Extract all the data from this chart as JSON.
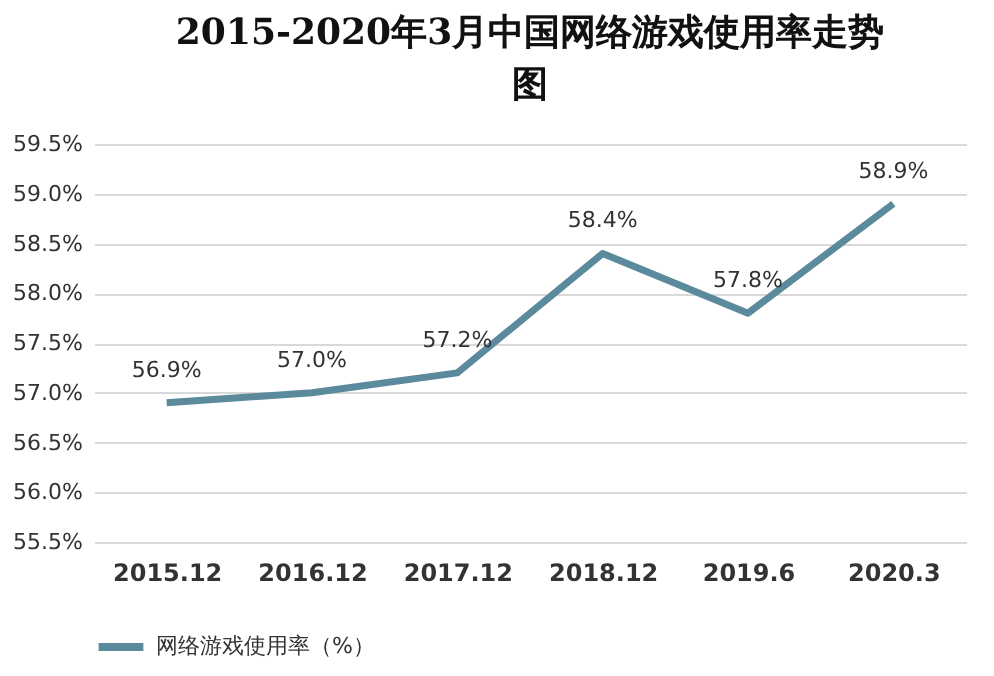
{
  "chart_data": {
    "type": "line",
    "title": "2015-2020年3月中国网络游戏使用率走势图",
    "categories": [
      "2015.12",
      "2016.12",
      "2017.12",
      "2018.12",
      "2019.6",
      "2020.3"
    ],
    "series": [
      {
        "name": "网络游戏使用率（%）",
        "color": "#5b8a9c",
        "values": [
          56.9,
          57.0,
          57.2,
          58.4,
          57.8,
          58.9
        ],
        "value_labels": [
          "56.9%",
          "57.0%",
          "57.2%",
          "58.4%",
          "57.8%",
          "58.9%"
        ]
      }
    ],
    "ylim": [
      55.5,
      59.5
    ],
    "yticks": [
      {
        "value": 55.5,
        "label": "55.5%"
      },
      {
        "value": 56.0,
        "label": "56.0%"
      },
      {
        "value": 56.5,
        "label": "56.5%"
      },
      {
        "value": 57.0,
        "label": "57.0%"
      },
      {
        "value": 57.5,
        "label": "57.5%"
      },
      {
        "value": 58.0,
        "label": "58.0%"
      },
      {
        "value": 58.5,
        "label": "58.5%"
      },
      {
        "value": 59.0,
        "label": "59.0%"
      },
      {
        "value": 59.5,
        "label": "59.5%"
      }
    ],
    "grid": "y",
    "legend": "bottom",
    "marker": "none",
    "line_style": "solid"
  }
}
